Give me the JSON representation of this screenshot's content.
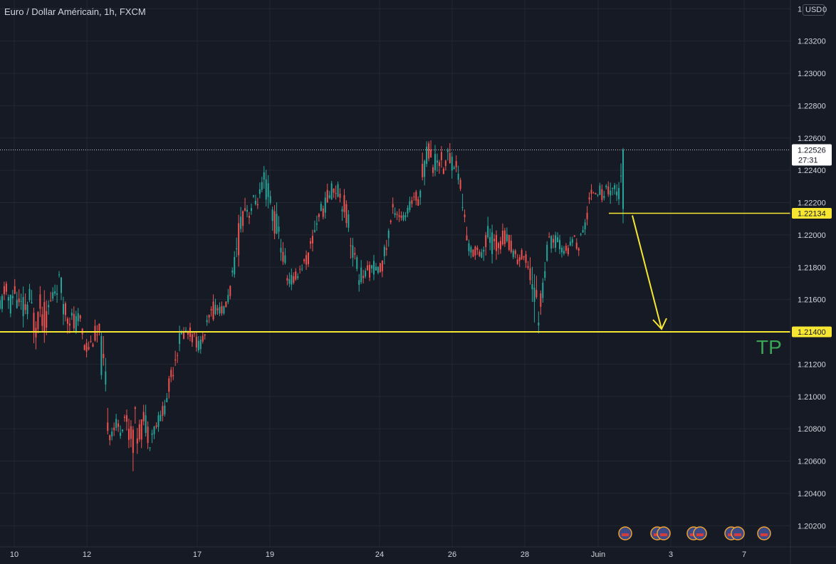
{
  "header": {
    "title": "Euro / Dollar Américain, 1h, FXCM",
    "currency": "USD",
    "clock_tail": "0"
  },
  "colors": {
    "background": "#161a25",
    "grid": "#232733",
    "up": "#26a69a",
    "down": "#ef5350",
    "annotation": "#f7e733",
    "tp": "#3aa655",
    "axis_text": "#d1d4dc"
  },
  "chart_data": {
    "type": "candlestick",
    "symbol": "EURUSD",
    "timeframe": "1h",
    "y_ticks": [
      1.202,
      1.204,
      1.206,
      1.208,
      1.21,
      1.212,
      1.214,
      1.216,
      1.218,
      1.22,
      1.222,
      1.224,
      1.226,
      1.228,
      1.23,
      1.232,
      1.234
    ],
    "y_tick_labels": [
      "1.20200",
      "1.20400",
      "1.20600",
      "1.20800",
      "1.21000",
      "1.21200",
      "1.21400",
      "1.21600",
      "1.21800",
      "1.22000",
      "1.22200",
      "1.22400",
      "1.22600",
      "1.22800",
      "1.23000",
      "1.23200",
      "1.234"
    ],
    "ylim": [
      1.2005,
      1.2345
    ],
    "x_tick_labels": [
      "10",
      "12",
      "17",
      "19",
      "24",
      "26",
      "28",
      "Juin",
      "3",
      "7"
    ],
    "grid": true,
    "current_price": {
      "value": 1.22526,
      "label": "1.22526",
      "countdown": "27:31"
    },
    "levels": [
      {
        "name": "entry",
        "value": 1.22134,
        "label": "1.22134"
      },
      {
        "name": "take-profit",
        "value": 1.214,
        "label": "1.21400"
      }
    ],
    "annotations": [
      {
        "text": "TP"
      }
    ],
    "price_path": [
      [
        1.2168,
        1.2135
      ],
      [
        1.2175,
        1.216
      ],
      [
        1.2172,
        1.2142
      ],
      [
        1.2176,
        1.2155
      ],
      [
        1.2168,
        1.214
      ],
      [
        1.2172,
        1.2135
      ],
      [
        1.2175,
        1.2145
      ],
      [
        1.2162,
        1.2125
      ],
      [
        1.217,
        1.214
      ],
      [
        1.2165,
        1.213
      ],
      [
        1.2168,
        1.2145
      ],
      [
        1.2178,
        1.2155
      ],
      [
        1.2182,
        1.2162
      ],
      [
        1.217,
        1.2138
      ],
      [
        1.2162,
        1.2138
      ],
      [
        1.2158,
        1.2128
      ],
      [
        1.2155,
        1.2145
      ],
      [
        1.2142,
        1.212
      ],
      [
        1.2138,
        1.2125
      ],
      [
        1.2148,
        1.2128
      ],
      [
        1.2152,
        1.212
      ],
      [
        1.2138,
        1.207
      ],
      [
        1.2088,
        1.2068
      ],
      [
        1.2092,
        1.2072
      ],
      [
        1.2088,
        1.207
      ],
      [
        1.2098,
        1.2078
      ],
      [
        1.209,
        1.2062
      ],
      [
        1.2105,
        1.2052
      ],
      [
        1.2092,
        1.2065
      ],
      [
        1.21,
        1.2072
      ],
      [
        1.209,
        1.2062
      ],
      [
        1.2088,
        1.2072
      ],
      [
        1.2095,
        1.2078
      ],
      [
        1.21,
        1.2085
      ],
      [
        1.2118,
        1.2095
      ],
      [
        1.2135,
        1.2112
      ],
      [
        1.2145,
        1.2125
      ],
      [
        1.2148,
        1.2132
      ],
      [
        1.2146,
        1.2133
      ],
      [
        1.2144,
        1.2128
      ],
      [
        1.2138,
        1.2125
      ],
      [
        1.2142,
        1.2132
      ],
      [
        1.2158,
        1.2138
      ],
      [
        1.2164,
        1.2145
      ],
      [
        1.2162,
        1.2148
      ],
      [
        1.2158,
        1.2148
      ],
      [
        1.2172,
        1.2155
      ],
      [
        1.219,
        1.2168
      ],
      [
        1.2225,
        1.218
      ],
      [
        1.2232,
        1.2205
      ],
      [
        1.2225,
        1.2205
      ],
      [
        1.223,
        1.221
      ],
      [
        1.2232,
        1.2215
      ],
      [
        1.2245,
        1.2218
      ],
      [
        1.2242,
        1.2205
      ],
      [
        1.2228,
        1.2192
      ],
      [
        1.2215,
        1.2188
      ],
      [
        1.2198,
        1.2168
      ],
      [
        1.2182,
        1.2162
      ],
      [
        1.2178,
        1.2165
      ],
      [
        1.2185,
        1.2172
      ],
      [
        1.219,
        1.2175
      ],
      [
        1.2195,
        1.2178
      ],
      [
        1.2215,
        1.219
      ],
      [
        1.2222,
        1.2205
      ],
      [
        1.2225,
        1.2208
      ],
      [
        1.2235,
        1.2215
      ],
      [
        1.224,
        1.222
      ],
      [
        1.2238,
        1.2218
      ],
      [
        1.2232,
        1.2205
      ],
      [
        1.2225,
        1.219
      ],
      [
        1.2198,
        1.2175
      ],
      [
        1.219,
        1.2162
      ],
      [
        1.2182,
        1.2168
      ],
      [
        1.2185,
        1.217
      ],
      [
        1.2188,
        1.2172
      ],
      [
        1.2182,
        1.2172
      ],
      [
        1.2195,
        1.2175
      ],
      [
        1.2215,
        1.2188
      ],
      [
        1.2225,
        1.221
      ],
      [
        1.2222,
        1.2205
      ],
      [
        1.2215,
        1.2205
      ],
      [
        1.2222,
        1.2208
      ],
      [
        1.2232,
        1.2218
      ],
      [
        1.2228,
        1.2215
      ],
      [
        1.2262,
        1.2225
      ],
      [
        1.2266,
        1.2242
      ],
      [
        1.2255,
        1.223
      ],
      [
        1.226,
        1.2238
      ],
      [
        1.2252,
        1.2232
      ],
      [
        1.2262,
        1.2235
      ],
      [
        1.2258,
        1.2235
      ],
      [
        1.2248,
        1.2228
      ],
      [
        1.2232,
        1.2195
      ],
      [
        1.22,
        1.2185
      ],
      [
        1.2195,
        1.2182
      ],
      [
        1.2198,
        1.2185
      ],
      [
        1.2202,
        1.2178
      ],
      [
        1.2212,
        1.2188
      ],
      [
        1.2208,
        1.218
      ],
      [
        1.2205,
        1.2185
      ],
      [
        1.2208,
        1.219
      ],
      [
        1.2205,
        1.2188
      ],
      [
        1.2195,
        1.2182
      ],
      [
        1.2198,
        1.2175
      ],
      [
        1.2192,
        1.218
      ],
      [
        1.219,
        1.2175
      ],
      [
        1.2198,
        1.214
      ],
      [
        1.2168,
        1.2132
      ],
      [
        1.2182,
        1.2158
      ],
      [
        1.2205,
        1.2182
      ],
      [
        1.2205,
        1.219
      ],
      [
        1.2202,
        1.2188
      ],
      [
        1.2198,
        1.2185
      ],
      [
        1.2195,
        1.2185
      ],
      [
        1.2205,
        1.219
      ],
      [
        1.2202,
        1.2185
      ],
      [
        1.2208,
        1.2192
      ],
      [
        1.2232,
        1.2205
      ],
      [
        1.2232,
        1.2222
      ],
      [
        1.2235,
        1.2222
      ],
      [
        1.223,
        1.2218
      ],
      [
        1.2238,
        1.2222
      ],
      [
        1.2242,
        1.2215
      ],
      [
        1.2235,
        1.2213
      ],
      [
        1.2253,
        1.2215
      ]
    ]
  }
}
